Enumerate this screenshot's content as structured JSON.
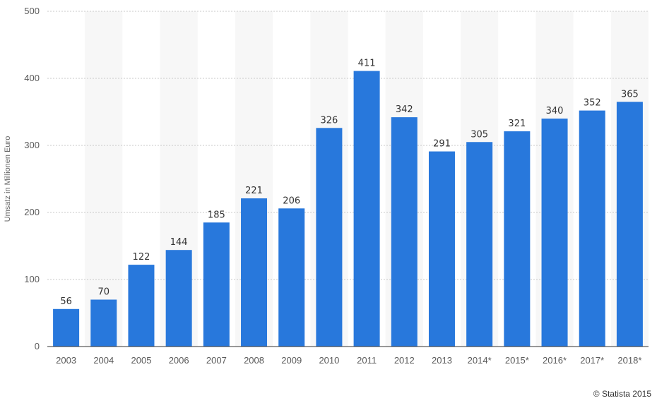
{
  "chart_data": {
    "type": "bar",
    "categories": [
      "2003",
      "2004",
      "2005",
      "2006",
      "2007",
      "2008",
      "2009",
      "2010",
      "2011",
      "2012",
      "2013",
      "2014*",
      "2015*",
      "2016*",
      "2017*",
      "2018*"
    ],
    "values": [
      56,
      70,
      122,
      144,
      185,
      221,
      206,
      326,
      411,
      342,
      291,
      305,
      321,
      340,
      352,
      365
    ],
    "title": "",
    "xlabel": "",
    "ylabel": "Umsatz in Millionen Euro",
    "ylim": [
      0,
      500
    ],
    "yticks": [
      0,
      100,
      200,
      300,
      400,
      500
    ],
    "grid": true,
    "legend": "none",
    "bar_color": "#2878dc"
  },
  "credit": "© Statista 2015"
}
